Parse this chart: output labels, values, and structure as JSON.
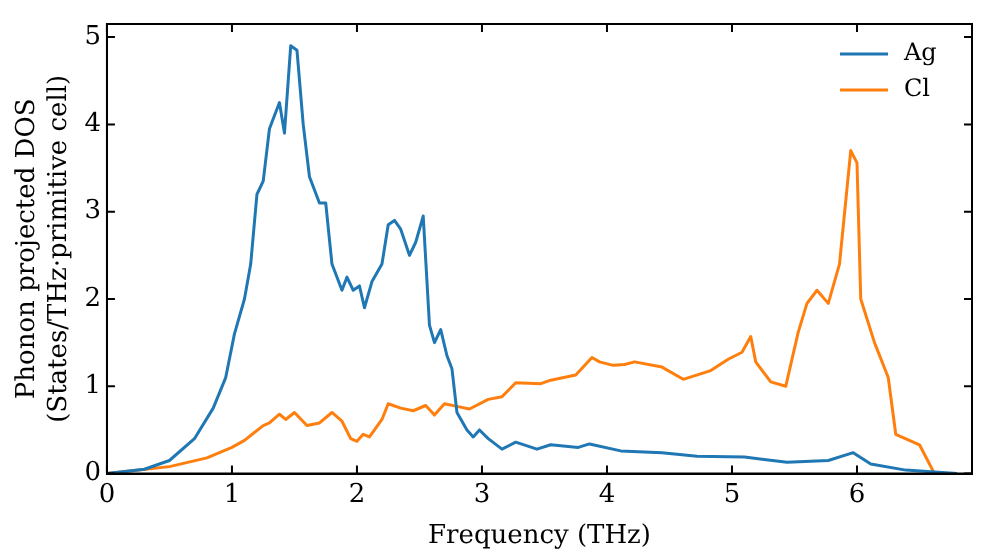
{
  "chart_data": {
    "type": "line",
    "xlabel": "Frequency (THz)",
    "ylabel": "Phonon projected DOS\n(States/THz·primitive cell)",
    "xlim": [
      0,
      6.92
    ],
    "xticks": [
      0,
      1,
      2,
      3,
      4,
      5,
      6
    ],
    "ylim": [
      0,
      5.15
    ],
    "yticks": [
      0,
      1,
      2,
      3,
      4,
      5
    ],
    "grid": false,
    "legend": "top right",
    "marker": "none",
    "line_style": "solid",
    "series": [
      {
        "name": "Ag",
        "color": "#1f77b4",
        "x": [
          0,
          0.3,
          0.5,
          0.7,
          0.85,
          0.95,
          1.02,
          1.1,
          1.15,
          1.2,
          1.25,
          1.3,
          1.38,
          1.42,
          1.47,
          1.52,
          1.57,
          1.62,
          1.7,
          1.75,
          1.8,
          1.88,
          1.92,
          1.97,
          2.02,
          2.06,
          2.12,
          2.2,
          2.25,
          2.3,
          2.35,
          2.42,
          2.47,
          2.53,
          2.58,
          2.62,
          2.67,
          2.72,
          2.76,
          2.8,
          2.88,
          2.93,
          2.98,
          3.05,
          3.16,
          3.27,
          3.44,
          3.55,
          3.77,
          3.86,
          4.11,
          4.44,
          4.72,
          5.1,
          5.44,
          5.77,
          5.97,
          6.11,
          6.39,
          6.8
        ],
        "values": [
          0,
          0.05,
          0.15,
          0.4,
          0.75,
          1.1,
          1.6,
          2.0,
          2.4,
          3.2,
          3.35,
          3.95,
          4.25,
          3.9,
          4.9,
          4.85,
          4.0,
          3.4,
          3.1,
          3.1,
          2.4,
          2.1,
          2.25,
          2.1,
          2.15,
          1.9,
          2.2,
          2.4,
          2.85,
          2.9,
          2.8,
          2.5,
          2.65,
          2.95,
          1.7,
          1.5,
          1.65,
          1.35,
          1.2,
          0.7,
          0.5,
          0.42,
          0.5,
          0.4,
          0.28,
          0.36,
          0.28,
          0.33,
          0.3,
          0.34,
          0.26,
          0.24,
          0.2,
          0.19,
          0.13,
          0.15,
          0.24,
          0.11,
          0.04,
          0
        ]
      },
      {
        "name": "Cl",
        "color": "#ff7f0e",
        "x": [
          0,
          0.5,
          0.8,
          1.0,
          1.1,
          1.25,
          1.3,
          1.38,
          1.43,
          1.5,
          1.6,
          1.7,
          1.8,
          1.88,
          1.95,
          2.0,
          2.05,
          2.1,
          2.2,
          2.25,
          2.35,
          2.45,
          2.55,
          2.62,
          2.7,
          2.8,
          2.9,
          3.05,
          3.16,
          3.27,
          3.47,
          3.55,
          3.75,
          3.88,
          3.94,
          4.05,
          4.14,
          4.22,
          4.44,
          4.61,
          4.83,
          4.97,
          5.08,
          5.15,
          5.19,
          5.31,
          5.43,
          5.53,
          5.6,
          5.68,
          5.77,
          5.86,
          5.95,
          6.0,
          6.03,
          6.14,
          6.25,
          6.31,
          6.5,
          6.62
        ],
        "values": [
          0,
          0.08,
          0.18,
          0.3,
          0.38,
          0.55,
          0.58,
          0.68,
          0.62,
          0.7,
          0.55,
          0.58,
          0.7,
          0.6,
          0.4,
          0.37,
          0.45,
          0.42,
          0.62,
          0.8,
          0.75,
          0.72,
          0.78,
          0.67,
          0.8,
          0.77,
          0.74,
          0.85,
          0.88,
          1.04,
          1.03,
          1.07,
          1.13,
          1.33,
          1.28,
          1.24,
          1.25,
          1.28,
          1.22,
          1.08,
          1.18,
          1.31,
          1.39,
          1.57,
          1.28,
          1.05,
          1.0,
          1.62,
          1.95,
          2.1,
          1.95,
          2.4,
          3.7,
          3.56,
          2.0,
          1.5,
          1.1,
          0.45,
          0.33,
          0
        ]
      }
    ]
  }
}
